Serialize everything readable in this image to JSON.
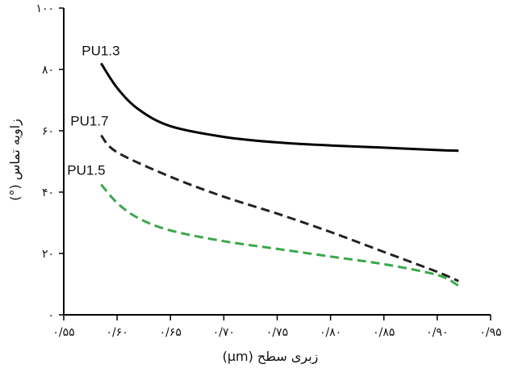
{
  "chart_data": {
    "type": "line",
    "title": "",
    "xlabel": "زبری سطح (µm)",
    "ylabel": "زاویه تماس (°)",
    "xlim": [
      0.55,
      0.95
    ],
    "ylim": [
      0,
      100
    ],
    "grid": false,
    "legend": "none",
    "x_ticks": [
      0.55,
      0.6,
      0.65,
      0.7,
      0.75,
      0.8,
      0.85,
      0.9,
      0.95
    ],
    "x_tick_labels": [
      "۰/۵۵",
      "۰/۶۰",
      "۰/۶۵",
      "۰/۷۰",
      "۰/۷۵",
      "۰/۸۰",
      "۰/۸۵",
      "۰/۹۰",
      "۰/۹۵"
    ],
    "y_ticks": [
      0,
      20,
      40,
      60,
      80,
      100
    ],
    "y_tick_labels": [
      "۰",
      "۲۰",
      "۴۰",
      "۶۰",
      "۸۰",
      "۱۰۰"
    ],
    "series": [
      {
        "name": "PU1.3",
        "color": "#000000",
        "style": "solid",
        "x": [
          0.585,
          0.6,
          0.62,
          0.65,
          0.7,
          0.75,
          0.8,
          0.85,
          0.9,
          0.92
        ],
        "y": [
          82,
          74,
          67,
          61.5,
          58,
          56.2,
          55.2,
          54.5,
          53.7,
          53.5
        ]
      },
      {
        "name": "PU1.7",
        "color": "#222222",
        "style": "dashed",
        "x": [
          0.585,
          0.6,
          0.65,
          0.7,
          0.75,
          0.8,
          0.85,
          0.9,
          0.92
        ],
        "y": [
          58.5,
          53,
          45,
          38.5,
          33,
          27,
          20.5,
          14,
          11
        ]
      },
      {
        "name": "PU1.5",
        "color": "#3aa84a",
        "style": "dashed",
        "x": [
          0.585,
          0.6,
          0.62,
          0.65,
          0.7,
          0.75,
          0.8,
          0.85,
          0.9,
          0.92
        ],
        "y": [
          42.5,
          36.5,
          31.5,
          27.5,
          24,
          21.5,
          19,
          16.5,
          13,
          9.5
        ]
      }
    ]
  }
}
